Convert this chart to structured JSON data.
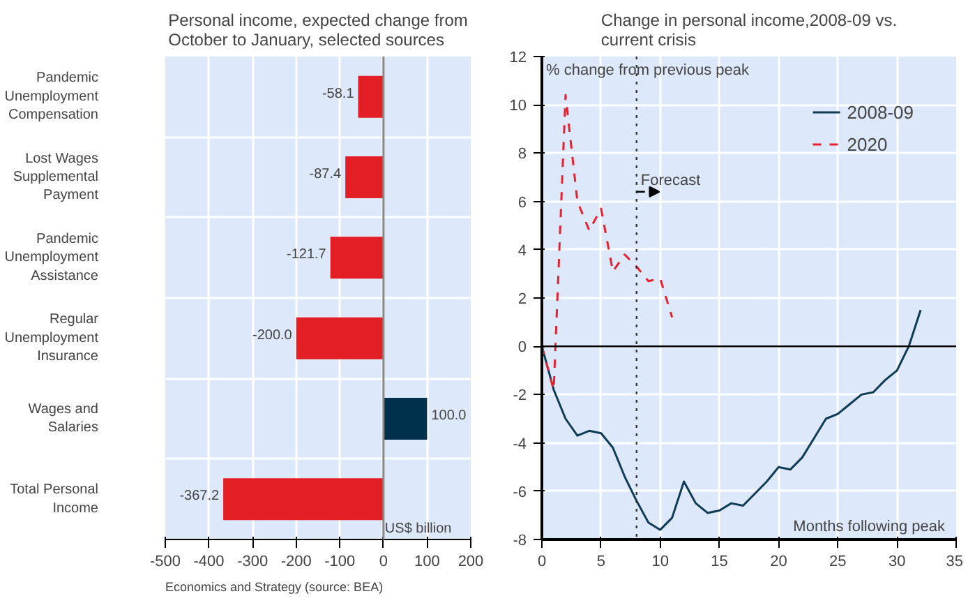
{
  "chart_data": [
    {
      "type": "bar",
      "orientation": "horizontal",
      "title": "Personal income, expected change from October to January, selected sources",
      "categories": [
        "Pandemic Unemployment Compensation",
        "Lost Wages Supplemental Payment",
        "Pandemic Unemployment Assistance",
        "Regular Unemployment Insurance",
        "Wages and Salaries",
        "Total Personal Income"
      ],
      "values": [
        -58.1,
        -87.4,
        -121.7,
        -200.0,
        100.0,
        -367.2
      ],
      "value_labels": [
        "-58.1",
        "-87.4",
        "-121.7",
        "-200.0",
        "100.0",
        "-367.2"
      ],
      "colors": [
        "#e31e24",
        "#e31e24",
        "#e31e24",
        "#e31e24",
        "#00314c",
        "#e31e24"
      ],
      "xlim": [
        -500,
        200
      ],
      "xticks": [
        -500,
        -400,
        -300,
        -200,
        -100,
        0,
        100,
        200
      ],
      "grid": true,
      "annotations": [
        "US$ billion",
        "Economics and Strategy (source: BEA)"
      ]
    },
    {
      "type": "line",
      "title": "Change in personal income,2008-09 vs. current crisis",
      "ylabel": "% change from previous peak",
      "xlabel": "Months following peak",
      "series": [
        {
          "name": "2008-09",
          "color": "#0f3b57",
          "line_style": "solid",
          "x": [
            0,
            1,
            2,
            3,
            4,
            5,
            6,
            7,
            8,
            9,
            10,
            11,
            12,
            13,
            14,
            15,
            16,
            17,
            18,
            19,
            20,
            21,
            22,
            23,
            24,
            25,
            26,
            27,
            28,
            29,
            30,
            31,
            32
          ],
          "values": [
            0,
            -1.8,
            -3.0,
            -3.7,
            -3.5,
            -3.6,
            -4.2,
            -5.4,
            -6.4,
            -7.3,
            -7.6,
            -7.1,
            -5.6,
            -6.5,
            -6.9,
            -6.8,
            -6.5,
            -6.6,
            -6.1,
            -5.6,
            -5.0,
            -5.1,
            -4.6,
            -3.8,
            -3.0,
            -2.8,
            -2.4,
            -2.0,
            -1.9,
            -1.4,
            -1.0,
            0,
            1.5
          ]
        },
        {
          "name": "2020",
          "color": "#e8212e",
          "line_style": "dashed",
          "x": [
            0,
            1,
            2,
            3,
            4,
            5,
            6,
            7,
            8,
            9,
            10,
            11
          ],
          "values": [
            0,
            -1.8,
            10.4,
            6.0,
            4.8,
            5.7,
            3.1,
            3.8,
            3.3,
            2.7,
            2.8,
            1.2
          ]
        }
      ],
      "xlim": [
        0,
        35
      ],
      "xticks": [
        0,
        5,
        10,
        15,
        20,
        25,
        30,
        35
      ],
      "ylim": [
        -8,
        12
      ],
      "yticks": [
        -8,
        -6,
        -4,
        -2,
        0,
        2,
        4,
        6,
        8,
        10,
        12
      ],
      "grid": true,
      "legend": "top right",
      "ref_lines": [
        {
          "axis": "y",
          "value": 0,
          "color": "#000000",
          "line_style": "solid"
        },
        {
          "axis": "x",
          "value": 8,
          "color": "#333333",
          "line_style": "dotted"
        }
      ],
      "annotations": [
        {
          "text": "Forecast",
          "x": 8,
          "y": 6.4
        }
      ]
    }
  ]
}
